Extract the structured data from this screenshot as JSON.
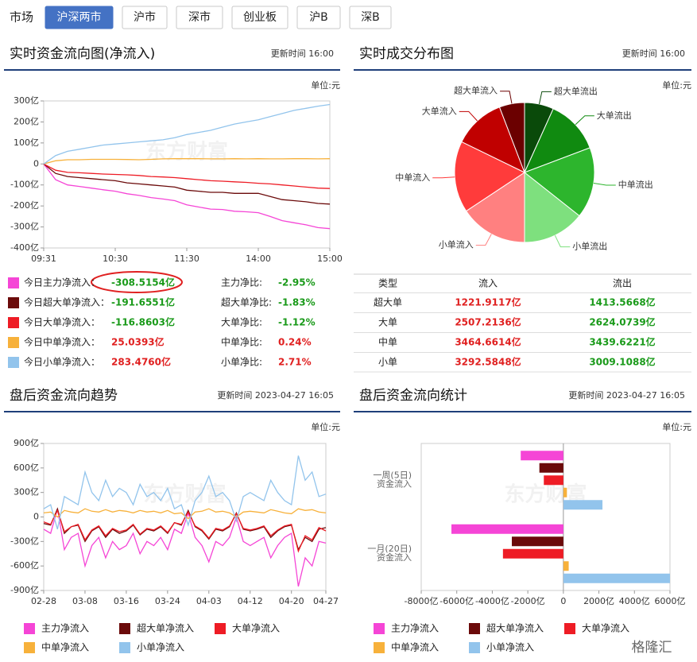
{
  "market": {
    "label": "市场",
    "tabs": [
      "沪深两市",
      "沪市",
      "深市",
      "创业板",
      "沪B",
      "深B"
    ]
  },
  "watermark": "东方财富",
  "brand": "格隆汇",
  "summary": {
    "rows": [
      [
        "今日主力净流入：",
        "-308.5154亿",
        "主力净比:",
        "-2.95%"
      ],
      [
        "今日超大单净流入：",
        "-191.6551亿",
        "超大单净比:",
        "-1.83%"
      ],
      [
        "今日大单净流入：",
        "-116.8603亿",
        "大单净比:",
        "-1.12%"
      ],
      [
        "今日中单净流入：",
        "25.0393亿",
        "中单净比:",
        "0.24%"
      ],
      [
        "今日小单净流入：",
        "283.4760亿",
        "小单净比:",
        "2.71%"
      ]
    ]
  },
  "deal_table": {
    "header": [
      "类型",
      "流入",
      "流出"
    ],
    "rows": [
      [
        "超大单",
        "1221.9117亿",
        "1413.5668亿"
      ],
      [
        "大单",
        "2507.2136亿",
        "2624.0739亿"
      ],
      [
        "中单",
        "3464.6614亿",
        "3439.6221亿"
      ],
      [
        "小单",
        "3292.5848亿",
        "3009.1088亿"
      ]
    ]
  },
  "chart_data": [
    {
      "type": "line",
      "title": "实时资金流向图(净流入)",
      "update_time": "更新时间 16:00",
      "unit": "单位:元",
      "categories": [
        "09:31",
        null,
        null,
        null,
        null,
        null,
        "10:30",
        null,
        null,
        null,
        null,
        null,
        "11:30",
        null,
        null,
        null,
        null,
        null,
        "14:00",
        null,
        null,
        null,
        null,
        null,
        "15:00"
      ],
      "ylim": [
        -400,
        300
      ],
      "yticks": [
        {
          "value": -400,
          "label": "-400亿"
        },
        {
          "value": -300,
          "label": "-300亿"
        },
        {
          "value": -200,
          "label": "-200亿"
        },
        {
          "value": -100,
          "label": "-100亿"
        },
        0,
        {
          "value": 100,
          "label": "100亿"
        },
        {
          "value": 200,
          "label": "200亿"
        },
        {
          "value": 300,
          "label": "300亿"
        }
      ],
      "series": [
        {
          "color": "#f545d6",
          "values": [
            0,
            -75,
            -100,
            -107,
            -115,
            -123,
            -130,
            -142,
            -150,
            -160,
            -167,
            -175,
            -195,
            -205,
            -215,
            -217,
            -225,
            -228,
            -232,
            -250,
            -270,
            -280,
            -290,
            -303,
            -308
          ]
        },
        {
          "color": "#6b0a0a",
          "values": [
            0,
            -45,
            -60,
            -65,
            -70,
            -75,
            -80,
            -90,
            -95,
            -100,
            -105,
            -110,
            -125,
            -130,
            -135,
            -135,
            -140,
            -140,
            -140,
            -155,
            -170,
            -175,
            -180,
            -188,
            -191
          ]
        },
        {
          "color": "#ee1c25",
          "values": [
            0,
            -30,
            -40,
            -42,
            -45,
            -48,
            -50,
            -52,
            -55,
            -60,
            -62,
            -65,
            -70,
            -75,
            -80,
            -82,
            -85,
            -88,
            -92,
            -95,
            -100,
            -105,
            -110,
            -115,
            -117
          ]
        },
        {
          "color": "#f7b13b",
          "values": [
            0,
            15,
            20,
            20,
            22,
            22,
            22,
            21,
            20,
            22,
            24,
            25,
            25,
            25,
            24,
            24,
            25,
            24,
            25,
            24,
            24,
            25,
            25,
            24,
            25
          ]
        },
        {
          "color": "#92c4ec",
          "values": [
            0,
            40,
            60,
            70,
            80,
            90,
            95,
            100,
            105,
            110,
            115,
            125,
            140,
            150,
            160,
            175,
            190,
            200,
            210,
            225,
            240,
            255,
            265,
            275,
            283
          ]
        }
      ]
    },
    {
      "type": "pie",
      "title": "实时成交分布图",
      "update_time": "更新时间 16:00",
      "unit": "单位:元",
      "categories": [
        "超大单流出",
        "大单流出",
        "中单流出",
        "小单流出",
        "小单流入",
        "中单流入",
        "大单流入",
        "超大单流入"
      ],
      "values": [
        1413.5668,
        2624.0739,
        3439.6221,
        3009.1088,
        3292.5848,
        3464.6614,
        2507.2136,
        1221.9117
      ],
      "colors": [
        "#0a4a0a",
        "#108a10",
        "#2db52d",
        "#7ee07e",
        "#ff8080",
        "#ff3b3b",
        "#c00000",
        "#6b0000"
      ]
    },
    {
      "type": "line",
      "title": "盘后资金流向趋势",
      "update_time": "更新时间 2023-04-27 16:05",
      "unit": "单位:元",
      "categories": [
        "02-28",
        null,
        null,
        null,
        null,
        null,
        "03-08",
        null,
        null,
        null,
        null,
        null,
        "03-16",
        null,
        null,
        null,
        null,
        null,
        "03-24",
        null,
        null,
        null,
        null,
        null,
        "04-03",
        null,
        null,
        null,
        null,
        null,
        "04-12",
        null,
        null,
        null,
        null,
        null,
        "04-20",
        null,
        null,
        null,
        null,
        "04-27"
      ],
      "ylim": [
        -900,
        900
      ],
      "yticks": [
        {
          "value": -900,
          "label": "-900亿"
        },
        {
          "value": -600,
          "label": "-600亿"
        },
        {
          "value": -300,
          "label": "-300亿"
        },
        0,
        {
          "value": 300,
          "label": "300亿"
        },
        {
          "value": 600,
          "label": "600亿"
        },
        {
          "value": 900,
          "label": "900亿"
        }
      ],
      "series": [
        {
          "name": "主力净流入",
          "color": "#f545d6",
          "values": [
            -150,
            -200,
            100,
            -400,
            -250,
            -200,
            -600,
            -350,
            -250,
            -500,
            -300,
            -400,
            -350,
            -200,
            -450,
            -300,
            -350,
            -250,
            -400,
            -150,
            -200,
            50,
            -250,
            -350,
            -550,
            -300,
            -350,
            -250,
            0,
            -300,
            -350,
            -300,
            -250,
            -500,
            -350,
            -250,
            -200,
            -850,
            -500,
            -600,
            -300,
            -320
          ]
        },
        {
          "name": "超大单净流入",
          "color": "#6b0a0a",
          "values": [
            -80,
            -100,
            100,
            -200,
            -120,
            -100,
            -300,
            -170,
            -120,
            -250,
            -150,
            -200,
            -170,
            -100,
            -220,
            -150,
            -170,
            -120,
            -200,
            -70,
            -100,
            80,
            -120,
            -170,
            -270,
            -150,
            -170,
            -120,
            50,
            -150,
            -170,
            -150,
            -120,
            -250,
            -170,
            -120,
            -100,
            -400,
            -250,
            -300,
            -150,
            -130
          ]
        },
        {
          "name": "大单净流入",
          "color": "#ee1c25",
          "values": [
            -60,
            -90,
            80,
            -180,
            -120,
            -90,
            -280,
            -160,
            -110,
            -230,
            -140,
            -180,
            -160,
            -90,
            -210,
            -140,
            -160,
            -110,
            -190,
            -70,
            -90,
            60,
            -110,
            -160,
            -260,
            -140,
            -160,
            -110,
            40,
            -140,
            -160,
            -140,
            -110,
            -230,
            -160,
            -110,
            -90,
            -420,
            -230,
            -280,
            -130,
            -170
          ]
        },
        {
          "name": "中单净流入",
          "color": "#f7b13b",
          "values": [
            50,
            60,
            0,
            80,
            60,
            50,
            100,
            70,
            60,
            90,
            60,
            80,
            70,
            50,
            80,
            60,
            70,
            50,
            80,
            40,
            50,
            -20,
            60,
            70,
            100,
            60,
            70,
            50,
            0,
            60,
            70,
            60,
            50,
            90,
            70,
            50,
            40,
            100,
            80,
            90,
            60,
            50
          ]
        },
        {
          "name": "小单净流入",
          "color": "#92c4ec",
          "values": [
            100,
            150,
            -150,
            250,
            200,
            150,
            550,
            300,
            200,
            450,
            250,
            350,
            300,
            150,
            400,
            250,
            300,
            200,
            350,
            100,
            150,
            -100,
            200,
            300,
            500,
            250,
            300,
            200,
            -50,
            250,
            300,
            250,
            200,
            450,
            300,
            200,
            150,
            750,
            450,
            550,
            250,
            280
          ]
        }
      ]
    },
    {
      "type": "bar",
      "orientation": "horizontal",
      "title": "盘后资金流向统计",
      "update_time": "更新时间 2023-04-27 16:05",
      "unit": "单位:元",
      "categories": [
        [
          "一周(5日)",
          "资金流入"
        ],
        [
          "一月(20日)",
          "资金流入"
        ]
      ],
      "xlim": [
        -8000,
        6000
      ],
      "xticks": [
        {
          "value": -8000,
          "label": "-8000亿"
        },
        {
          "value": -6000,
          "label": "-6000亿"
        },
        {
          "value": -4000,
          "label": "-4000亿"
        },
        {
          "value": -2000,
          "label": "-2000亿"
        },
        0,
        {
          "value": 2000,
          "label": "2000亿"
        },
        {
          "value": 4000,
          "label": "4000亿"
        },
        {
          "value": 6000,
          "label": "6000亿"
        }
      ],
      "series": [
        {
          "name": "主力净流入",
          "color": "#f545d6",
          "values": [
            -2400,
            -6300
          ]
        },
        {
          "name": "超大单净流入",
          "color": "#6b0a0a",
          "values": [
            -1350,
            -2900
          ]
        },
        {
          "name": "大单净流入",
          "color": "#ee1c25",
          "values": [
            -1100,
            -3400
          ]
        },
        {
          "name": "中单净流入",
          "color": "#f7b13b",
          "values": [
            200,
            300
          ]
        },
        {
          "name": "小单净流入",
          "color": "#92c4ec",
          "values": [
            2200,
            6000
          ]
        }
      ]
    }
  ]
}
